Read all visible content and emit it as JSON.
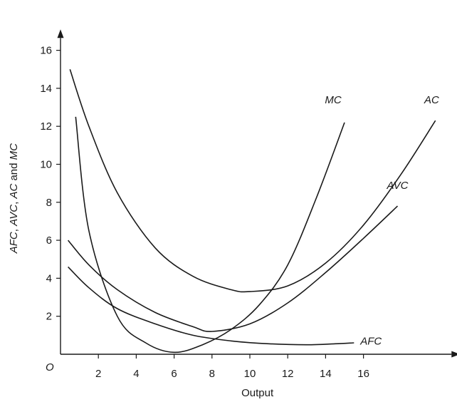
{
  "chart_data": {
    "type": "line",
    "title": "",
    "xlabel": "Output",
    "ylabel_parts": [
      {
        "text": "AFC",
        "italic": true
      },
      {
        "text": ", ",
        "italic": false
      },
      {
        "text": "AVC",
        "italic": true
      },
      {
        "text": ", ",
        "italic": false
      },
      {
        "text": "AC",
        "italic": true
      },
      {
        "text": " and ",
        "italic": false
      },
      {
        "text": "MC",
        "italic": true
      }
    ],
    "origin_label": "O",
    "xlim": [
      0,
      20.8
    ],
    "ylim": [
      0,
      16.8
    ],
    "x_ticks": [
      2,
      4,
      6,
      8,
      10,
      12,
      14,
      16
    ],
    "y_ticks": [
      2,
      4,
      6,
      8,
      10,
      12,
      14,
      16
    ],
    "grid": false,
    "series": [
      {
        "name": "MC",
        "points": [
          [
            0.8,
            12.5
          ],
          [
            1.5,
            6.5
          ],
          [
            3,
            2.0
          ],
          [
            4.5,
            0.6
          ],
          [
            6,
            0.1
          ],
          [
            7.5,
            0.5
          ],
          [
            9,
            1.3
          ],
          [
            10.5,
            2.6
          ],
          [
            12,
            4.7
          ],
          [
            13.5,
            8.2
          ],
          [
            15,
            12.2
          ]
        ]
      },
      {
        "name": "AC",
        "points": [
          [
            0.5,
            15.0
          ],
          [
            1.5,
            12.0
          ],
          [
            3,
            8.5
          ],
          [
            5,
            5.6
          ],
          [
            7,
            4.1
          ],
          [
            9,
            3.4
          ],
          [
            10,
            3.3
          ],
          [
            12,
            3.6
          ],
          [
            14,
            4.8
          ],
          [
            16,
            6.8
          ],
          [
            18,
            9.5
          ],
          [
            19.8,
            12.3
          ]
        ]
      },
      {
        "name": "AVC",
        "points": [
          [
            0.4,
            6.0
          ],
          [
            1.5,
            4.7
          ],
          [
            3,
            3.4
          ],
          [
            5,
            2.2
          ],
          [
            7,
            1.45
          ],
          [
            8,
            1.2
          ],
          [
            10,
            1.6
          ],
          [
            12,
            2.7
          ],
          [
            14,
            4.3
          ],
          [
            16,
            6.1
          ],
          [
            17.8,
            7.8
          ]
        ]
      },
      {
        "name": "AFC",
        "points": [
          [
            0.4,
            4.6
          ],
          [
            1.5,
            3.5
          ],
          [
            3,
            2.4
          ],
          [
            5,
            1.6
          ],
          [
            7,
            1.0
          ],
          [
            9,
            0.7
          ],
          [
            11,
            0.55
          ],
          [
            13,
            0.5
          ],
          [
            14.5,
            0.55
          ],
          [
            15.5,
            0.6
          ]
        ]
      }
    ],
    "labels": [
      {
        "text": "MC",
        "x": 14.4,
        "y": 13.2
      },
      {
        "text": "AC",
        "x": 19.6,
        "y": 13.2
      },
      {
        "text": "AVC",
        "x": 17.8,
        "y": 8.7
      },
      {
        "text": "AFC",
        "x": 16.4,
        "y": 0.5
      }
    ]
  }
}
